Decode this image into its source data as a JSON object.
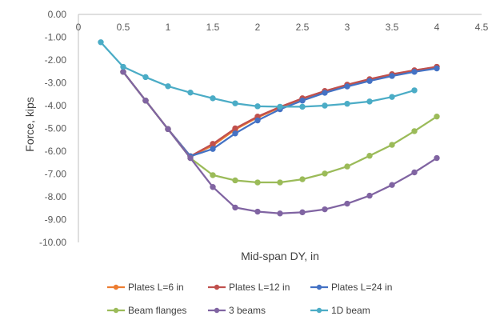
{
  "chart_data": {
    "type": "line",
    "title": "",
    "xlabel": "Mid-span DY, in",
    "ylabel": "Force, kips",
    "xlim": [
      0,
      4.5
    ],
    "ylim": [
      -10,
      0
    ],
    "x_ticks": [
      "0",
      "0.5",
      "1",
      "1.5",
      "2",
      "2.5",
      "3",
      "3.5",
      "4",
      "4.5"
    ],
    "y_ticks": [
      "0.00",
      "-1.00",
      "-2.00",
      "-3.00",
      "-4.00",
      "-5.00",
      "-6.00",
      "-7.00",
      "-8.00",
      "-9.00",
      "-10.00"
    ],
    "x_tick_values": [
      0,
      0.5,
      1,
      1.5,
      2,
      2.5,
      3,
      3.5,
      4,
      4.5
    ],
    "y_tick_values": [
      0,
      -1,
      -2,
      -3,
      -4,
      -5,
      -6,
      -7,
      -8,
      -9,
      -10
    ],
    "x_axis_position": "top",
    "grid": false,
    "legend_position": "bottom",
    "series": [
      {
        "name": "Plates L=6 in",
        "color": "#ed7d31",
        "points": [
          [
            0.5,
            -2.52
          ],
          [
            0.75,
            -3.78
          ],
          [
            1.0,
            -5.03
          ],
          [
            1.25,
            -6.22
          ],
          [
            1.5,
            -5.75
          ],
          [
            1.75,
            -5.05
          ],
          [
            2.0,
            -4.52
          ],
          [
            2.25,
            -4.08
          ],
          [
            2.5,
            -3.7
          ],
          [
            2.75,
            -3.37
          ],
          [
            3.0,
            -3.1
          ],
          [
            3.25,
            -2.85
          ],
          [
            3.5,
            -2.65
          ],
          [
            3.75,
            -2.47
          ],
          [
            4.0,
            -2.3
          ]
        ]
      },
      {
        "name": "Plates L=12 in",
        "color": "#c0504d",
        "points": [
          [
            0.5,
            -2.52
          ],
          [
            0.75,
            -3.78
          ],
          [
            1.0,
            -5.03
          ],
          [
            1.25,
            -6.22
          ],
          [
            1.5,
            -5.68
          ],
          [
            1.75,
            -5.0
          ],
          [
            2.0,
            -4.48
          ],
          [
            2.25,
            -4.06
          ],
          [
            2.5,
            -3.68
          ],
          [
            2.75,
            -3.36
          ],
          [
            3.0,
            -3.08
          ],
          [
            3.25,
            -2.84
          ],
          [
            3.5,
            -2.62
          ],
          [
            3.75,
            -2.45
          ],
          [
            4.0,
            -2.3
          ]
        ]
      },
      {
        "name": "Plates L=24 in",
        "color": "#4472c4",
        "points": [
          [
            0.5,
            -2.52
          ],
          [
            0.75,
            -3.78
          ],
          [
            1.0,
            -5.03
          ],
          [
            1.25,
            -6.22
          ],
          [
            1.5,
            -5.9
          ],
          [
            1.75,
            -5.22
          ],
          [
            2.0,
            -4.65
          ],
          [
            2.25,
            -4.16
          ],
          [
            2.5,
            -3.78
          ],
          [
            2.75,
            -3.44
          ],
          [
            3.0,
            -3.16
          ],
          [
            3.25,
            -2.92
          ],
          [
            3.5,
            -2.7
          ],
          [
            3.75,
            -2.52
          ],
          [
            4.0,
            -2.37
          ]
        ]
      },
      {
        "name": "Beam flanges",
        "color": "#9bbb59",
        "points": [
          [
            0.5,
            -2.52
          ],
          [
            0.75,
            -3.78
          ],
          [
            1.0,
            -5.03
          ],
          [
            1.25,
            -6.3
          ],
          [
            1.5,
            -7.05
          ],
          [
            1.75,
            -7.28
          ],
          [
            2.0,
            -7.37
          ],
          [
            2.25,
            -7.37
          ],
          [
            2.5,
            -7.23
          ],
          [
            2.75,
            -6.98
          ],
          [
            3.0,
            -6.67
          ],
          [
            3.25,
            -6.2
          ],
          [
            3.5,
            -5.72
          ],
          [
            3.75,
            -5.12
          ],
          [
            4.0,
            -4.48
          ]
        ]
      },
      {
        "name": "3 beams",
        "color": "#8064a2",
        "points": [
          [
            0.5,
            -2.52
          ],
          [
            0.75,
            -3.78
          ],
          [
            1.0,
            -5.03
          ],
          [
            1.25,
            -6.3
          ],
          [
            1.5,
            -7.57
          ],
          [
            1.75,
            -8.47
          ],
          [
            2.0,
            -8.65
          ],
          [
            2.25,
            -8.73
          ],
          [
            2.5,
            -8.68
          ],
          [
            2.75,
            -8.55
          ],
          [
            3.0,
            -8.3
          ],
          [
            3.25,
            -7.95
          ],
          [
            3.5,
            -7.48
          ],
          [
            3.75,
            -6.93
          ],
          [
            4.0,
            -6.3
          ]
        ]
      },
      {
        "name": "1D beam",
        "color": "#4bacc6",
        "points": [
          [
            0.25,
            -1.22
          ],
          [
            0.5,
            -2.3
          ],
          [
            0.75,
            -2.75
          ],
          [
            1.0,
            -3.15
          ],
          [
            1.25,
            -3.43
          ],
          [
            1.5,
            -3.68
          ],
          [
            1.75,
            -3.9
          ],
          [
            2.0,
            -4.03
          ],
          [
            2.25,
            -4.05
          ],
          [
            2.5,
            -4.05
          ],
          [
            2.75,
            -4.0
          ],
          [
            3.0,
            -3.92
          ],
          [
            3.25,
            -3.82
          ],
          [
            3.5,
            -3.62
          ],
          [
            3.75,
            -3.33
          ]
        ]
      }
    ]
  }
}
